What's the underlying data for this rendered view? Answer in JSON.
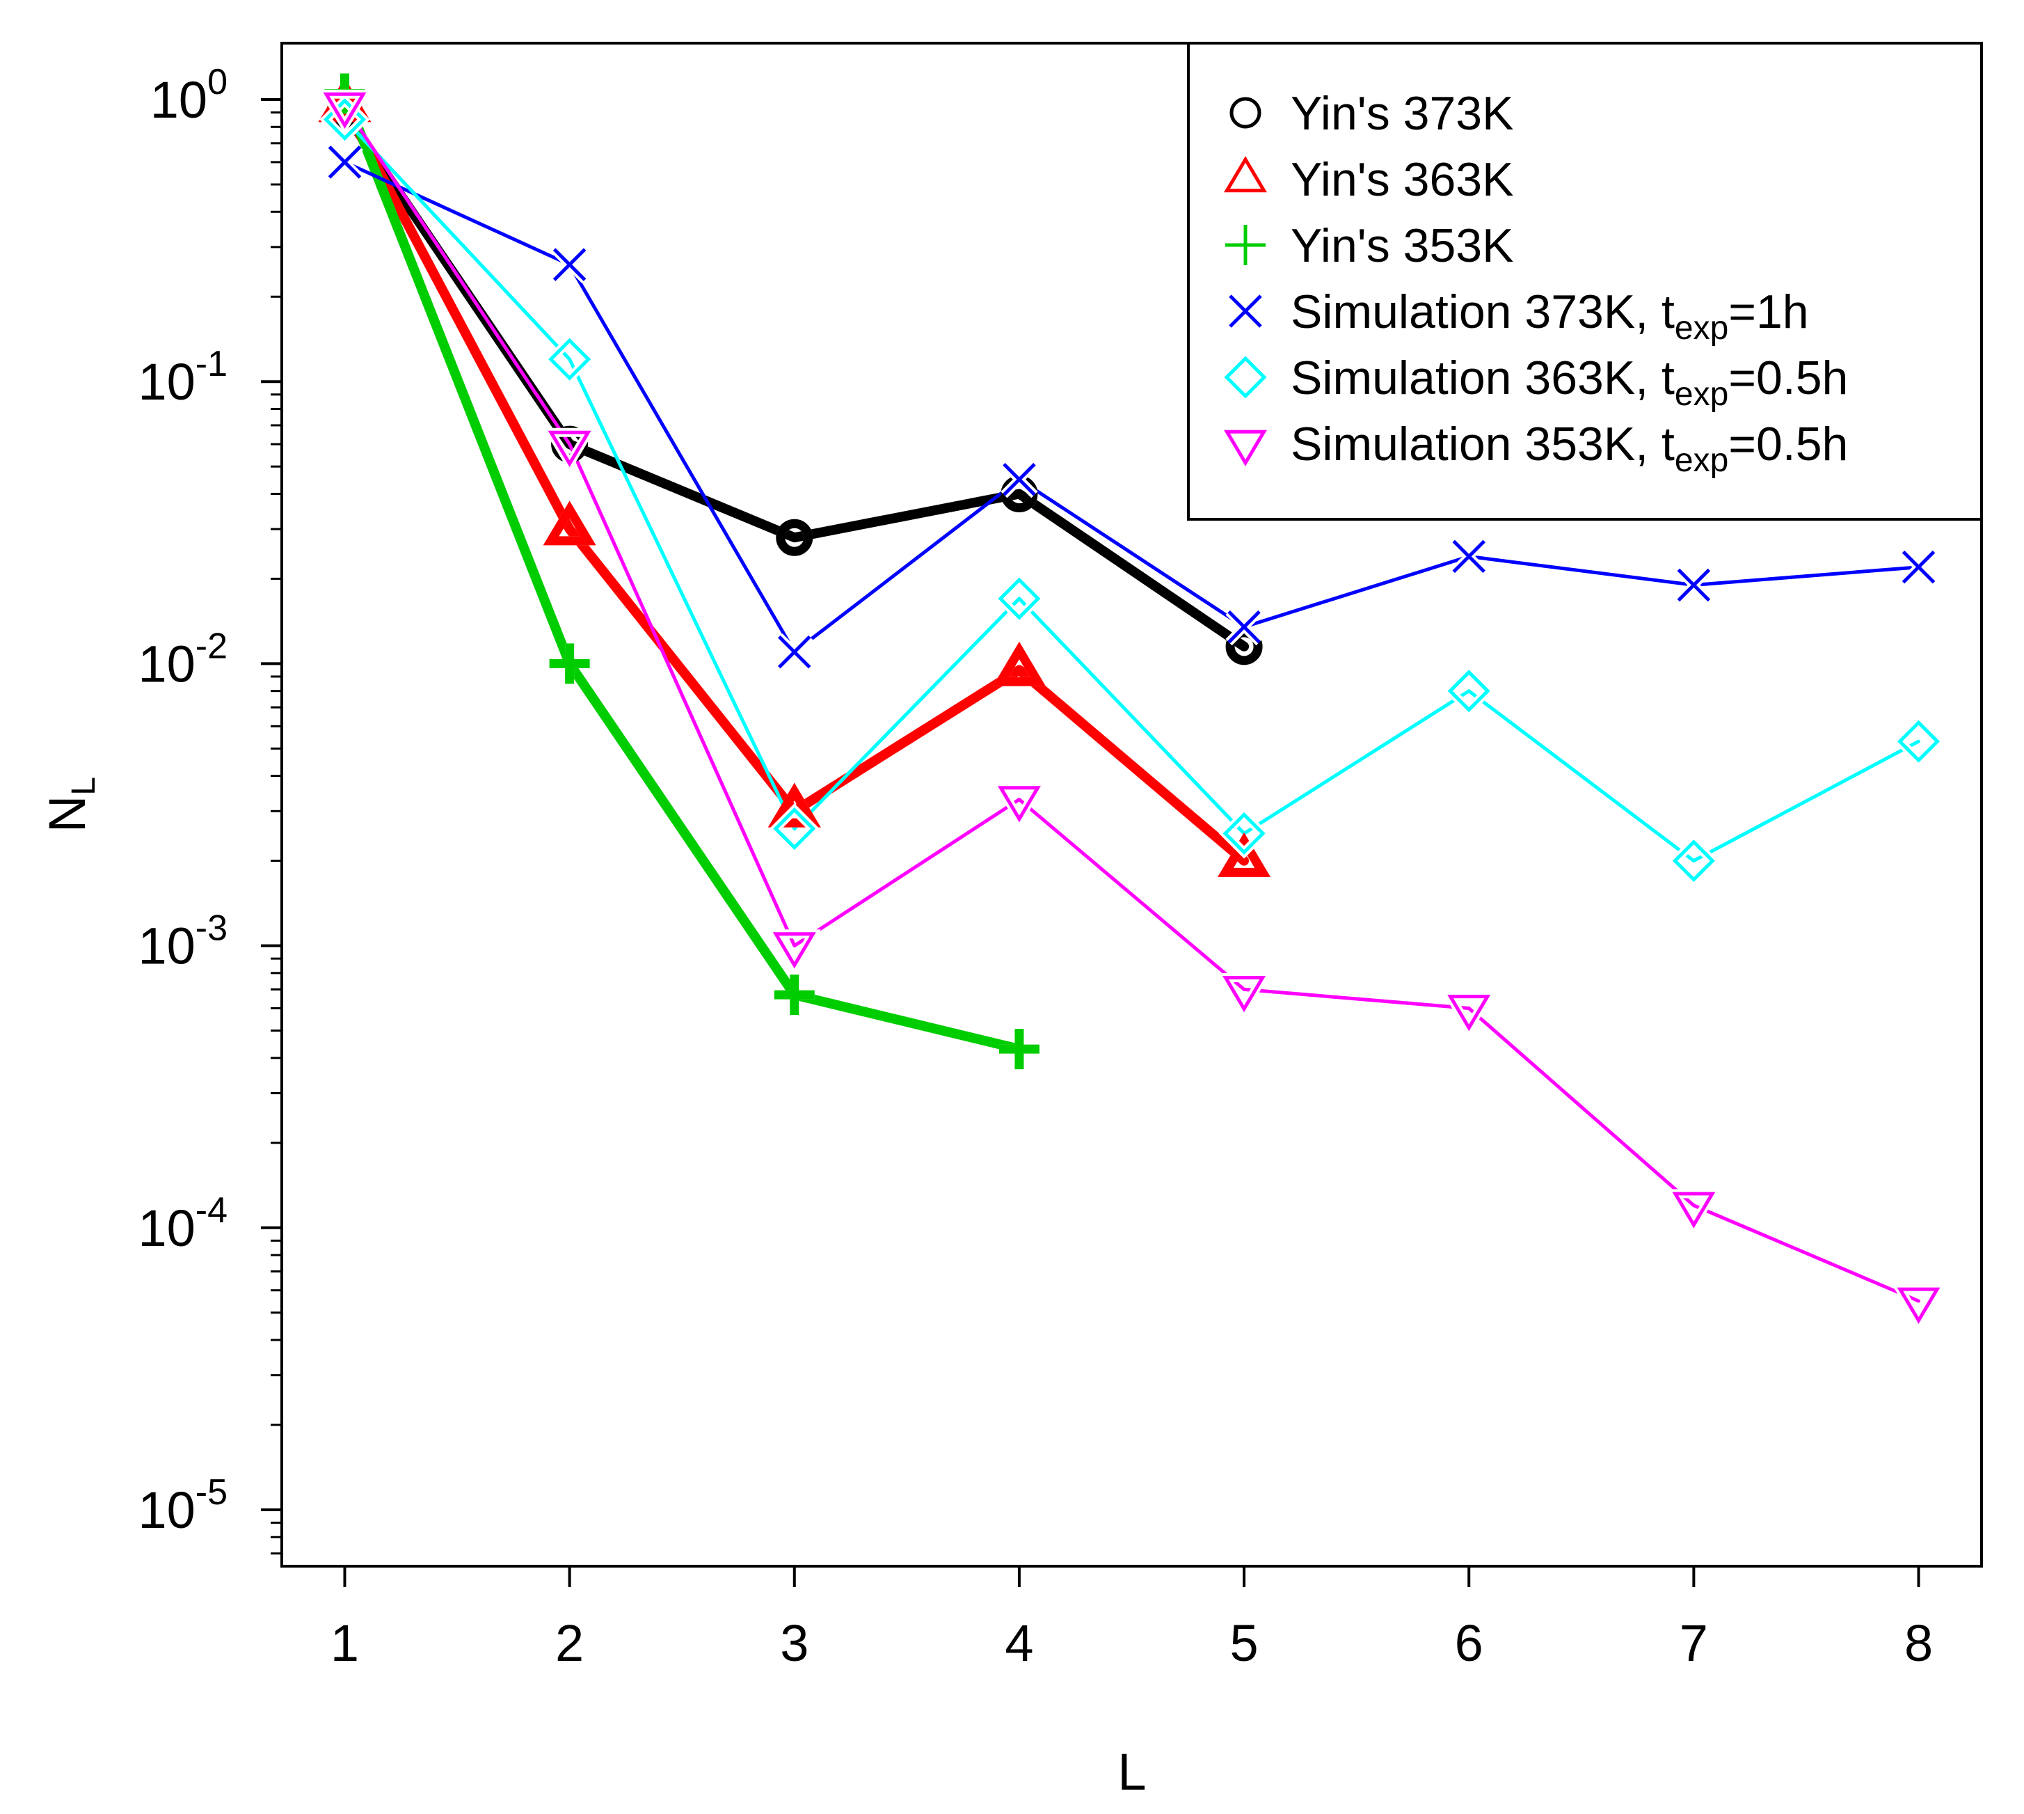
{
  "chart_data": {
    "type": "line",
    "title": "",
    "xlabel": "L",
    "ylabel": "N",
    "ylabel_subscript": "L",
    "x_ticks": [
      1,
      2,
      3,
      4,
      5,
      6,
      7,
      8
    ],
    "x_range": [
      0.72,
      8.28
    ],
    "y_scale": "log10",
    "y_range_exponents": [
      -5.2,
      0.2
    ],
    "y_ticks": [
      {
        "base": "10",
        "exp": "0",
        "value": 1
      },
      {
        "base": "10",
        "exp": "-1",
        "value": 0.1
      },
      {
        "base": "10",
        "exp": "-2",
        "value": 0.01
      },
      {
        "base": "10",
        "exp": "-3",
        "value": 0.001
      },
      {
        "base": "10",
        "exp": "-4",
        "value": 0.0001
      },
      {
        "base": "10",
        "exp": "-5",
        "value": 1e-05
      }
    ],
    "legend_position": "top-right",
    "series": [
      {
        "name": "Yin's 373K",
        "legend_label": "Yin's 373K",
        "marker": "circle",
        "color": "#000000",
        "line_weight": "thick",
        "x": [
          1,
          2,
          3,
          4,
          5
        ],
        "values": [
          0.9,
          0.06,
          0.028,
          0.04,
          0.0115
        ]
      },
      {
        "name": "Yin's 363K",
        "legend_label": "Yin's 363K",
        "marker": "triangle-up",
        "color": "#ff0000",
        "line_weight": "thick",
        "x": [
          1,
          2,
          3,
          4,
          5
        ],
        "values": [
          0.95,
          0.03,
          0.003,
          0.0095,
          0.002
        ]
      },
      {
        "name": "Yin's 353K",
        "legend_label": "Yin's 353K",
        "marker": "plus",
        "color": "#00cd00",
        "line_weight": "thick",
        "x": [
          1,
          2,
          3,
          4
        ],
        "values": [
          1.05,
          0.01,
          0.00067,
          0.00043
        ]
      },
      {
        "name": "Simulation 373K, texp=1h",
        "legend_prefix": "Simulation 373K, t",
        "legend_sub": "exp",
        "legend_suffix": "=1h",
        "marker": "cross",
        "color": "#0000ff",
        "line_weight": "thin",
        "x": [
          1,
          2,
          3,
          4,
          5,
          6,
          7,
          8
        ],
        "values": [
          0.6,
          0.26,
          0.011,
          0.045,
          0.0135,
          0.024,
          0.019,
          0.022
        ]
      },
      {
        "name": "Simulation 363K, texp=0.5h",
        "legend_prefix": "Simulation 363K, t",
        "legend_sub": "exp",
        "legend_suffix": "=0.5h",
        "marker": "diamond",
        "color": "#00ffff",
        "line_weight": "thin",
        "x": [
          1,
          2,
          3,
          4,
          5,
          6,
          7,
          8
        ],
        "values": [
          0.85,
          0.12,
          0.0026,
          0.017,
          0.0025,
          0.008,
          0.002,
          0.0053
        ]
      },
      {
        "name": "Simulation 353K, texp=0.5h",
        "legend_prefix": "Simulation 353K, t",
        "legend_sub": "exp",
        "legend_suffix": "=0.5h",
        "marker": "triangle-down",
        "color": "#ff00ff",
        "line_weight": "thin",
        "x": [
          1,
          2,
          3,
          4,
          5,
          6,
          7,
          8
        ],
        "values": [
          0.95,
          0.06,
          0.001,
          0.0033,
          0.0007,
          0.0006,
          0.00012,
          5.5e-05
        ]
      }
    ]
  }
}
